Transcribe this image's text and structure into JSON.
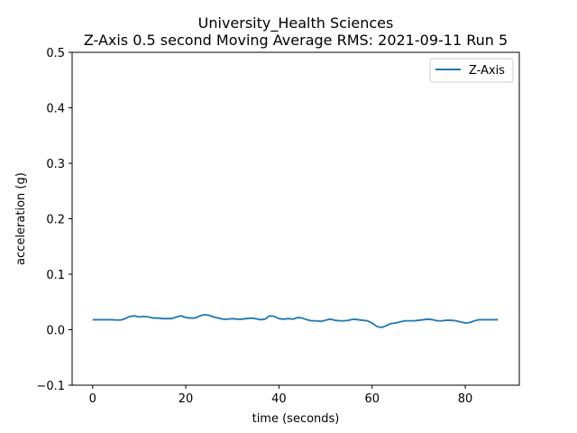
{
  "chart_data": {
    "type": "line",
    "title_lines": [
      "University_Health Sciences",
      "Z-Axis 0.5 second Moving Average RMS: 2021-09-11 Run 5"
    ],
    "xlabel": "time (seconds)",
    "ylabel": "acceleration (g)",
    "xlim": [
      -4.4,
      91.6
    ],
    "ylim": [
      -0.1,
      0.5
    ],
    "xticks": [
      0,
      20,
      40,
      60,
      80
    ],
    "yticks": [
      -0.1,
      0.0,
      0.1,
      0.2,
      0.3,
      0.4,
      0.5
    ],
    "ytick_labels": [
      "−0.1",
      "0.0",
      "0.1",
      "0.2",
      "0.3",
      "0.4",
      "0.5"
    ],
    "grid": false,
    "legend_position": "top-right",
    "series": [
      {
        "name": "Z-Axis",
        "color": "#1f77b4",
        "x": [
          0,
          1,
          2,
          3,
          4,
          5,
          6,
          7,
          8,
          9,
          10,
          11,
          12,
          13,
          14,
          15,
          16,
          17,
          18,
          19,
          20,
          21,
          22,
          23,
          24,
          25,
          26,
          27,
          28,
          29,
          30,
          31,
          32,
          33,
          34,
          35,
          36,
          37,
          38,
          39,
          40,
          41,
          42,
          43,
          44,
          45,
          46,
          47,
          48,
          49,
          50,
          51,
          52,
          53,
          54,
          55,
          56,
          57,
          58,
          59,
          60,
          61,
          62,
          63,
          64,
          65,
          66,
          67,
          68,
          69,
          70,
          71,
          72,
          73,
          74,
          75,
          76,
          77,
          78,
          79,
          80,
          81,
          82,
          83,
          84,
          85,
          86,
          87
        ],
        "y": [
          0.018,
          0.018,
          0.018,
          0.018,
          0.018,
          0.0175,
          0.0175,
          0.02,
          0.024,
          0.025,
          0.023,
          0.024,
          0.023,
          0.021,
          0.021,
          0.02,
          0.02,
          0.02,
          0.023,
          0.025,
          0.022,
          0.021,
          0.021,
          0.025,
          0.027,
          0.026,
          0.023,
          0.021,
          0.019,
          0.019,
          0.02,
          0.019,
          0.019,
          0.02,
          0.021,
          0.02,
          0.018,
          0.019,
          0.025,
          0.024,
          0.02,
          0.019,
          0.02,
          0.019,
          0.022,
          0.021,
          0.018,
          0.016,
          0.016,
          0.015,
          0.017,
          0.019,
          0.017,
          0.016,
          0.016,
          0.017,
          0.019,
          0.018,
          0.017,
          0.016,
          0.012,
          0.006,
          0.004,
          0.007,
          0.011,
          0.012,
          0.014,
          0.016,
          0.016,
          0.016,
          0.017,
          0.018,
          0.019,
          0.018,
          0.016,
          0.016,
          0.017,
          0.017,
          0.016,
          0.014,
          0.012,
          0.013,
          0.016,
          0.018,
          0.018,
          0.018,
          0.018,
          0.018
        ]
      }
    ]
  }
}
